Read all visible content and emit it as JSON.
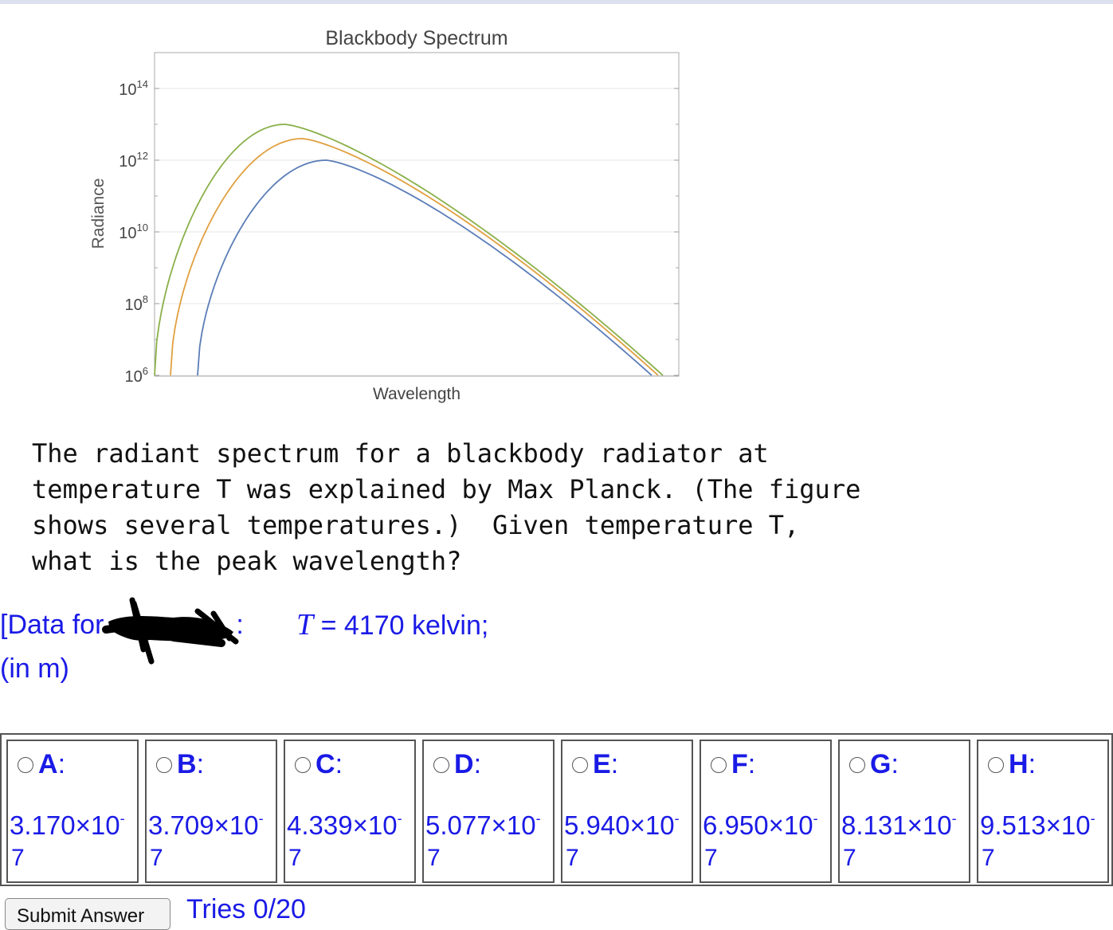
{
  "chart_data": {
    "type": "line",
    "title": "Blackbody Spectrum",
    "xlabel": "Wavelength",
    "ylabel": "Radiance",
    "yscale": "log",
    "ylim": [
      1000000,
      100000000000000
    ],
    "yticks": [
      "10",
      "10",
      "10",
      "10",
      "10"
    ],
    "ytick_exponents": [
      "14",
      "12",
      "10",
      "8",
      "6"
    ],
    "ytick_values": [
      100000000000000,
      1000000000000,
      10000000000,
      100000000,
      1000000
    ],
    "grid": true,
    "series": [
      {
        "color": "#5b7db8",
        "peak_value": 1000000000000
      },
      {
        "color": "#e0a040",
        "peak_value": 4000000000000
      },
      {
        "color": "#8ab04a",
        "peak_value": 10000000000000
      }
    ]
  },
  "question": {
    "text": "The radiant spectrum for a blackbody radiator at\ntemperature T was explained by Max Planck. (The figure\nshows several temperatures.)  Given temperature T,\nwhat is the peak wavelength?"
  },
  "data": {
    "prefix": "[Data for",
    "suffix": ":",
    "variable": "T",
    "value_text": " = 4170 kelvin;",
    "units": "(in m)"
  },
  "answers": [
    {
      "letter": "A",
      "mantissa": "3.170×10",
      "exp": "7"
    },
    {
      "letter": "B",
      "mantissa": "3.709×10",
      "exp": "7"
    },
    {
      "letter": "C",
      "mantissa": "4.339×10",
      "exp": "7"
    },
    {
      "letter": "D",
      "mantissa": "5.077×10",
      "exp": "7"
    },
    {
      "letter": "E",
      "mantissa": "5.940×10",
      "exp": "7"
    },
    {
      "letter": "F",
      "mantissa": "6.950×10",
      "exp": "7"
    },
    {
      "letter": "G",
      "mantissa": "8.131×10",
      "exp": "7"
    },
    {
      "letter": "H",
      "mantissa": "9.513×10",
      "exp": "7"
    }
  ],
  "footer": {
    "submit_label": "Submit Answer",
    "tries": "Tries 0/20"
  }
}
